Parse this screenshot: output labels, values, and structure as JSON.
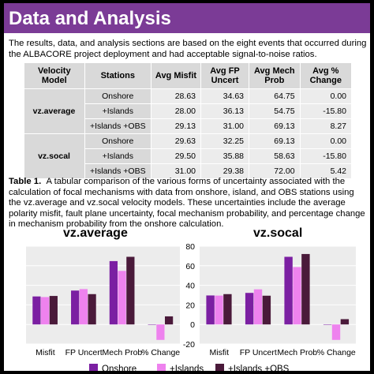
{
  "header": {
    "title": "Data and Analysis",
    "background": "#7b3b96"
  },
  "intro": "The results, data, and analysis sections are based on the eight events that occurred during the ALBACORE project deployment and had acceptable signal-to-noise ratios.",
  "table": {
    "columns": [
      "Velocity Model",
      "Stations",
      "Avg Misfit",
      "Avg FP Uncert",
      "Avg Mech Prob",
      "Avg % Change"
    ],
    "groups": [
      {
        "model": "vz.average",
        "rows": [
          {
            "stations": "Onshore",
            "misfit": "28.63",
            "fp": "34.63",
            "mech": "64.75",
            "change": "0.00"
          },
          {
            "stations": "+Islands",
            "misfit": "28.00",
            "fp": "36.13",
            "mech": "54.75",
            "change": "-15.80"
          },
          {
            "stations": "+Islands +OBS",
            "misfit": "29.13",
            "fp": "31.00",
            "mech": "69.13",
            "change": "8.27"
          }
        ]
      },
      {
        "model": "vz.socal",
        "rows": [
          {
            "stations": "Onshore",
            "misfit": "29.63",
            "fp": "32.25",
            "mech": "69.13",
            "change": "0.00"
          },
          {
            "stations": "+Islands",
            "misfit": "29.50",
            "fp": "35.88",
            "mech": "58.63",
            "change": "-15.80"
          },
          {
            "stations": "+Islands +OBS",
            "misfit": "31.00",
            "fp": "29.38",
            "mech": "72.00",
            "change": "5.42"
          }
        ]
      }
    ]
  },
  "caption": {
    "label": "Table 1.",
    "text": "A tabular comparison of the various forms of uncertainty associated with the calculation of focal mechanisms with data from onshore, island, and OBS stations using the vz.average and vz.socal velocity models. These uncertainties include the average polarity misfit, fault plane uncertainty, focal mechanism probability, and percentage change in mechanism probability from the onshore calculation."
  },
  "chart_data": [
    {
      "type": "bar",
      "title": "vz.average",
      "categories": [
        "Misfit",
        "FP Uncert",
        "Mech Prob",
        "% Change"
      ],
      "ylim": [
        -20,
        80
      ],
      "yticks": [],
      "series": [
        {
          "name": "Onshore",
          "values": [
            28.63,
            34.63,
            64.75,
            0.0
          ]
        },
        {
          "name": "+Islands",
          "values": [
            28.0,
            36.13,
            54.75,
            -15.8
          ]
        },
        {
          "name": "+Islands +OBS",
          "values": [
            29.13,
            31.0,
            69.13,
            8.27
          ]
        }
      ]
    },
    {
      "type": "bar",
      "title": "vz.socal",
      "categories": [
        "Misfit",
        "FP Uncert",
        "Mech Prob",
        "% Change"
      ],
      "ylim": [
        -20,
        80
      ],
      "yticks": [
        "80",
        "60",
        "40",
        "20",
        "0",
        "-20"
      ],
      "series": [
        {
          "name": "Onshore",
          "values": [
            29.63,
            32.25,
            69.13,
            0.0
          ]
        },
        {
          "name": "+Islands",
          "values": [
            29.5,
            35.88,
            58.63,
            -15.8
          ]
        },
        {
          "name": "+Islands +OBS",
          "values": [
            31.0,
            29.38,
            72.0,
            5.42
          ]
        }
      ]
    }
  ],
  "colors": {
    "Onshore": "#7b1fa2",
    "+Islands": "#ee82ee",
    "+Islands +OBS": "#4a1a3a",
    "plot_bg": "#ececec",
    "grid": "#ffffff"
  },
  "legend": [
    "Onshore",
    "+Islands",
    "+Islands +OBS"
  ]
}
